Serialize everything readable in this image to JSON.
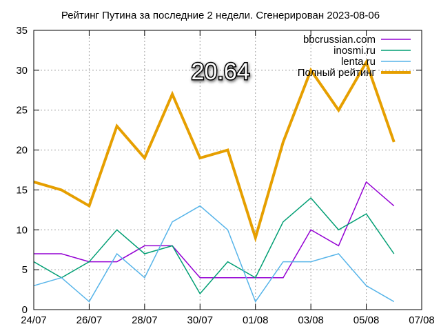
{
  "chart_data": {
    "type": "line",
    "title": "Рейтинг Путина за последние 2 недели. Сгенерирован 2023-08-06",
    "overlay_value": "20.64",
    "xlabel": "",
    "ylabel": "",
    "xlim": [
      "24/07",
      "07/08"
    ],
    "ylim": [
      0,
      35
    ],
    "x_ticks": [
      "24/07",
      "26/07",
      "28/07",
      "30/07",
      "01/08",
      "03/08",
      "05/08",
      "07/08"
    ],
    "y_ticks": [
      "0",
      "5",
      "10",
      "15",
      "20",
      "25",
      "30",
      "35"
    ],
    "grid": true,
    "legend_position": "top-right",
    "x": [
      "24/07",
      "25/07",
      "26/07",
      "27/07",
      "28/07",
      "29/07",
      "30/07",
      "31/07",
      "01/08",
      "02/08",
      "03/08",
      "04/08",
      "05/08",
      "06/08"
    ],
    "series": [
      {
        "name": "bbcrussian.com",
        "color": "#9400d3",
        "width": 1.5,
        "values": [
          7,
          7,
          6,
          6,
          8,
          8,
          4,
          4,
          4,
          4,
          10,
          8,
          16,
          13
        ]
      },
      {
        "name": "inosmi.ru",
        "color": "#009e73",
        "width": 1.5,
        "values": [
          6,
          4,
          6,
          10,
          7,
          8,
          2,
          6,
          4,
          11,
          14,
          10,
          12,
          7
        ]
      },
      {
        "name": "lenta.ru",
        "color": "#56b4e9",
        "width": 1.5,
        "values": [
          3,
          4,
          1,
          7,
          4,
          11,
          13,
          10,
          1,
          6,
          6,
          7,
          3,
          1
        ]
      },
      {
        "name": "Полный рейтинг",
        "color": "#e69f00",
        "width": 4,
        "values": [
          16,
          15,
          13,
          23,
          19,
          27,
          19,
          20,
          9,
          21,
          30,
          25,
          31,
          21
        ]
      }
    ]
  }
}
